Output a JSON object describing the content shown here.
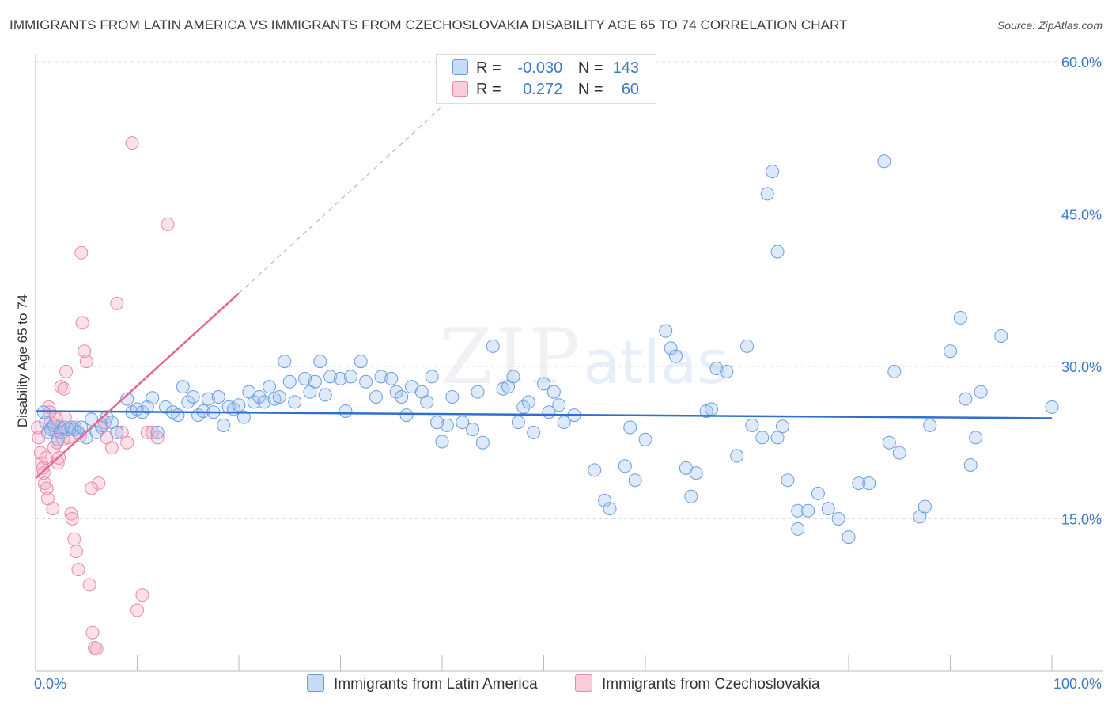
{
  "title": "IMMIGRANTS FROM LATIN AMERICA VS IMMIGRANTS FROM CZECHOSLOVAKIA DISABILITY AGE 65 TO 74 CORRELATION CHART",
  "source": "Source: ZipAtlas.com",
  "watermark": {
    "zip": "ZIP",
    "atlas": "atlas"
  },
  "colors": {
    "blue_fill": "rgba(160,195,240,0.35)",
    "blue_stroke": "#6a9de0",
    "blue_line": "#2f6fcf",
    "pink_fill": "rgba(245,170,195,0.35)",
    "pink_stroke": "#e88aa8",
    "pink_line": "#e5688f",
    "tick_label": "#3a78c9",
    "grid": "#dddddd"
  },
  "legend": {
    "rows": [
      {
        "r_label": "R =",
        "r_value": "-0.030",
        "n_label": "N =",
        "n_value": "143"
      },
      {
        "r_label": "R =",
        "r_value": "0.272",
        "n_label": "N =",
        "n_value": "60"
      }
    ]
  },
  "bottom_legend": {
    "series1": "Immigrants from Latin America",
    "series2": "Immigrants from Czechoslovakia"
  },
  "chart_data": {
    "type": "scatter",
    "ylabel": "Disability Age 65 to 74",
    "xlabel": "",
    "xlim": [
      0,
      100
    ],
    "ylim": [
      0,
      60
    ],
    "y_ticks": [
      15,
      30,
      45,
      60
    ],
    "y_tick_labels": [
      "15.0%",
      "30.0%",
      "45.0%",
      "60.0%"
    ],
    "x_tick_labels": [
      "0.0%",
      "100.0%"
    ],
    "grid": true,
    "legend_position": "top-center",
    "series": [
      {
        "name": "Immigrants from Latin America",
        "trend": {
          "x": [
            0,
            100
          ],
          "y": [
            25.6,
            24.9
          ]
        },
        "points": [
          [
            0.8,
            25.5
          ],
          [
            1,
            24.5
          ],
          [
            1.2,
            23.5
          ],
          [
            1.5,
            23.8
          ],
          [
            1.8,
            24.2
          ],
          [
            2.2,
            22.8
          ],
          [
            2.5,
            23.5
          ],
          [
            2.8,
            24
          ],
          [
            3.2,
            23.8
          ],
          [
            3.5,
            24
          ],
          [
            3.8,
            23.8
          ],
          [
            4.2,
            23.5
          ],
          [
            4.5,
            24
          ],
          [
            5,
            23
          ],
          [
            5.5,
            24.8
          ],
          [
            6,
            23.5
          ],
          [
            6.5,
            24.2
          ],
          [
            7,
            25
          ],
          [
            7.5,
            24.5
          ],
          [
            8,
            23.5
          ],
          [
            9,
            26.8
          ],
          [
            9.5,
            25.5
          ],
          [
            10,
            25.8
          ],
          [
            10.5,
            25.5
          ],
          [
            11,
            26
          ],
          [
            11.5,
            26.9
          ],
          [
            12,
            23.5
          ],
          [
            12.8,
            26
          ],
          [
            13.5,
            25.5
          ],
          [
            14,
            25.2
          ],
          [
            14.5,
            28
          ],
          [
            15,
            26.5
          ],
          [
            15.5,
            27
          ],
          [
            16,
            25.2
          ],
          [
            16.5,
            25.6
          ],
          [
            17,
            26.8
          ],
          [
            17.5,
            25.5
          ],
          [
            18,
            27
          ],
          [
            18.5,
            24.2
          ],
          [
            19,
            26
          ],
          [
            19.5,
            25.8
          ],
          [
            20,
            26.2
          ],
          [
            20.5,
            25
          ],
          [
            21,
            27.5
          ],
          [
            21.5,
            26.5
          ],
          [
            22,
            27
          ],
          [
            22.5,
            26.5
          ],
          [
            23,
            28
          ],
          [
            23.5,
            26.8
          ],
          [
            24,
            27
          ],
          [
            25,
            28.5
          ],
          [
            24.5,
            30.5
          ],
          [
            25.5,
            26.5
          ],
          [
            26.5,
            28.8
          ],
          [
            27,
            27.5
          ],
          [
            27.5,
            28.5
          ],
          [
            28,
            30.5
          ],
          [
            28.5,
            27.2
          ],
          [
            29,
            29
          ],
          [
            30,
            28.8
          ],
          [
            30.5,
            25.6
          ],
          [
            31,
            29
          ],
          [
            32,
            30.5
          ],
          [
            32.5,
            28.5
          ],
          [
            33.5,
            27
          ],
          [
            34,
            29
          ],
          [
            35,
            28.8
          ],
          [
            35.5,
            27.5
          ],
          [
            36,
            27
          ],
          [
            36.5,
            25.2
          ],
          [
            37,
            28
          ],
          [
            38,
            27.5
          ],
          [
            38.5,
            26.5
          ],
          [
            39,
            29
          ],
          [
            39.5,
            24.5
          ],
          [
            40,
            22.6
          ],
          [
            40.5,
            24.2
          ],
          [
            41,
            27
          ],
          [
            42,
            24.5
          ],
          [
            43,
            23.8
          ],
          [
            43.5,
            27.5
          ],
          [
            44,
            22.5
          ],
          [
            45,
            32
          ],
          [
            46,
            27.8
          ],
          [
            46.5,
            28
          ],
          [
            47,
            29
          ],
          [
            47.5,
            24.5
          ],
          [
            48,
            26
          ],
          [
            48.5,
            26.5
          ],
          [
            49,
            23.5
          ],
          [
            50,
            28.3
          ],
          [
            50.5,
            25.5
          ],
          [
            51,
            27.5
          ],
          [
            51.5,
            26.2
          ],
          [
            52,
            24.5
          ],
          [
            53,
            25.2
          ],
          [
            55,
            19.8
          ],
          [
            56,
            16.8
          ],
          [
            56.5,
            16
          ],
          [
            58,
            20.2
          ],
          [
            58.5,
            24
          ],
          [
            59,
            18.8
          ],
          [
            60,
            22.8
          ],
          [
            62,
            33.5
          ],
          [
            62.5,
            31.8
          ],
          [
            63,
            31
          ],
          [
            64,
            20
          ],
          [
            64.5,
            17.2
          ],
          [
            65,
            19.5
          ],
          [
            66,
            25.6
          ],
          [
            66.5,
            25.8
          ],
          [
            67,
            29.8
          ],
          [
            68,
            29.5
          ],
          [
            69,
            21.2
          ],
          [
            70,
            32
          ],
          [
            70.5,
            24.2
          ],
          [
            71.5,
            23
          ],
          [
            72,
            47
          ],
          [
            72.5,
            49.2
          ],
          [
            73,
            41.3
          ],
          [
            73,
            23
          ],
          [
            74,
            18.8
          ],
          [
            75,
            14
          ],
          [
            75,
            15.8
          ],
          [
            76,
            15.8
          ],
          [
            77,
            17.5
          ],
          [
            78,
            16
          ],
          [
            79,
            15
          ],
          [
            80,
            13.2
          ],
          [
            81,
            18.5
          ],
          [
            82,
            18.5
          ],
          [
            84,
            22.5
          ],
          [
            84.5,
            29.5
          ],
          [
            85,
            21.5
          ],
          [
            87,
            15.2
          ],
          [
            87.5,
            16.2
          ],
          [
            88,
            24.2
          ],
          [
            90,
            31.5
          ],
          [
            91,
            34.8
          ],
          [
            91.5,
            26.8
          ],
          [
            92,
            20.3
          ],
          [
            92.5,
            23
          ],
          [
            93,
            27.5
          ],
          [
            95,
            33
          ],
          [
            100,
            26
          ],
          [
            83.5,
            50.2
          ],
          [
            73.5,
            24.1
          ]
        ]
      },
      {
        "name": "Immigrants from Czechoslovakia",
        "trend": {
          "x": [
            0,
            20
          ],
          "y": [
            19,
            37.2
          ],
          "dashed_to": {
            "x": [
              20,
              40
            ],
            "y": [
              37.2,
              55.6
            ]
          }
        },
        "points": [
          [
            0.2,
            24
          ],
          [
            0.3,
            23
          ],
          [
            0.5,
            21.5
          ],
          [
            0.6,
            20.5
          ],
          [
            0.7,
            20
          ],
          [
            0.8,
            19.5
          ],
          [
            0.9,
            18.5
          ],
          [
            1,
            21
          ],
          [
            1.1,
            18
          ],
          [
            1.2,
            17
          ],
          [
            1.3,
            26
          ],
          [
            1.4,
            25.5
          ],
          [
            1.5,
            24.5
          ],
          [
            1.6,
            24
          ],
          [
            1.8,
            22
          ],
          [
            2,
            23.5
          ],
          [
            2.1,
            22.5
          ],
          [
            2.2,
            20.5
          ],
          [
            2.3,
            21
          ],
          [
            2.4,
            24
          ],
          [
            2.5,
            28
          ],
          [
            2.6,
            23.8
          ],
          [
            2.7,
            22.8
          ],
          [
            2.8,
            27.8
          ],
          [
            3,
            29.5
          ],
          [
            3.2,
            23
          ],
          [
            3.5,
            15.5
          ],
          [
            3.6,
            15
          ],
          [
            3.8,
            13
          ],
          [
            4,
            11.8
          ],
          [
            4.2,
            10
          ],
          [
            4.5,
            41.2
          ],
          [
            4.6,
            34.3
          ],
          [
            4.8,
            31.5
          ],
          [
            5,
            30.5
          ],
          [
            5.3,
            8.5
          ],
          [
            5.6,
            3.8
          ],
          [
            5.8,
            2.3
          ],
          [
            6,
            2.2
          ],
          [
            6.2,
            18.5
          ],
          [
            6.5,
            24
          ],
          [
            6.8,
            24.5
          ],
          [
            7,
            23
          ],
          [
            7.5,
            22
          ],
          [
            8,
            36.2
          ],
          [
            8.5,
            23.5
          ],
          [
            9,
            22.5
          ],
          [
            9.5,
            52
          ],
          [
            10,
            6
          ],
          [
            10.5,
            7.5
          ],
          [
            11,
            23.5
          ],
          [
            11.5,
            23.5
          ],
          [
            12,
            23
          ],
          [
            13,
            44
          ],
          [
            2.9,
            25
          ],
          [
            1.7,
            16
          ],
          [
            3.9,
            24
          ],
          [
            4.4,
            23.2
          ],
          [
            2.05,
            24.8
          ],
          [
            5.5,
            18
          ]
        ]
      }
    ]
  }
}
